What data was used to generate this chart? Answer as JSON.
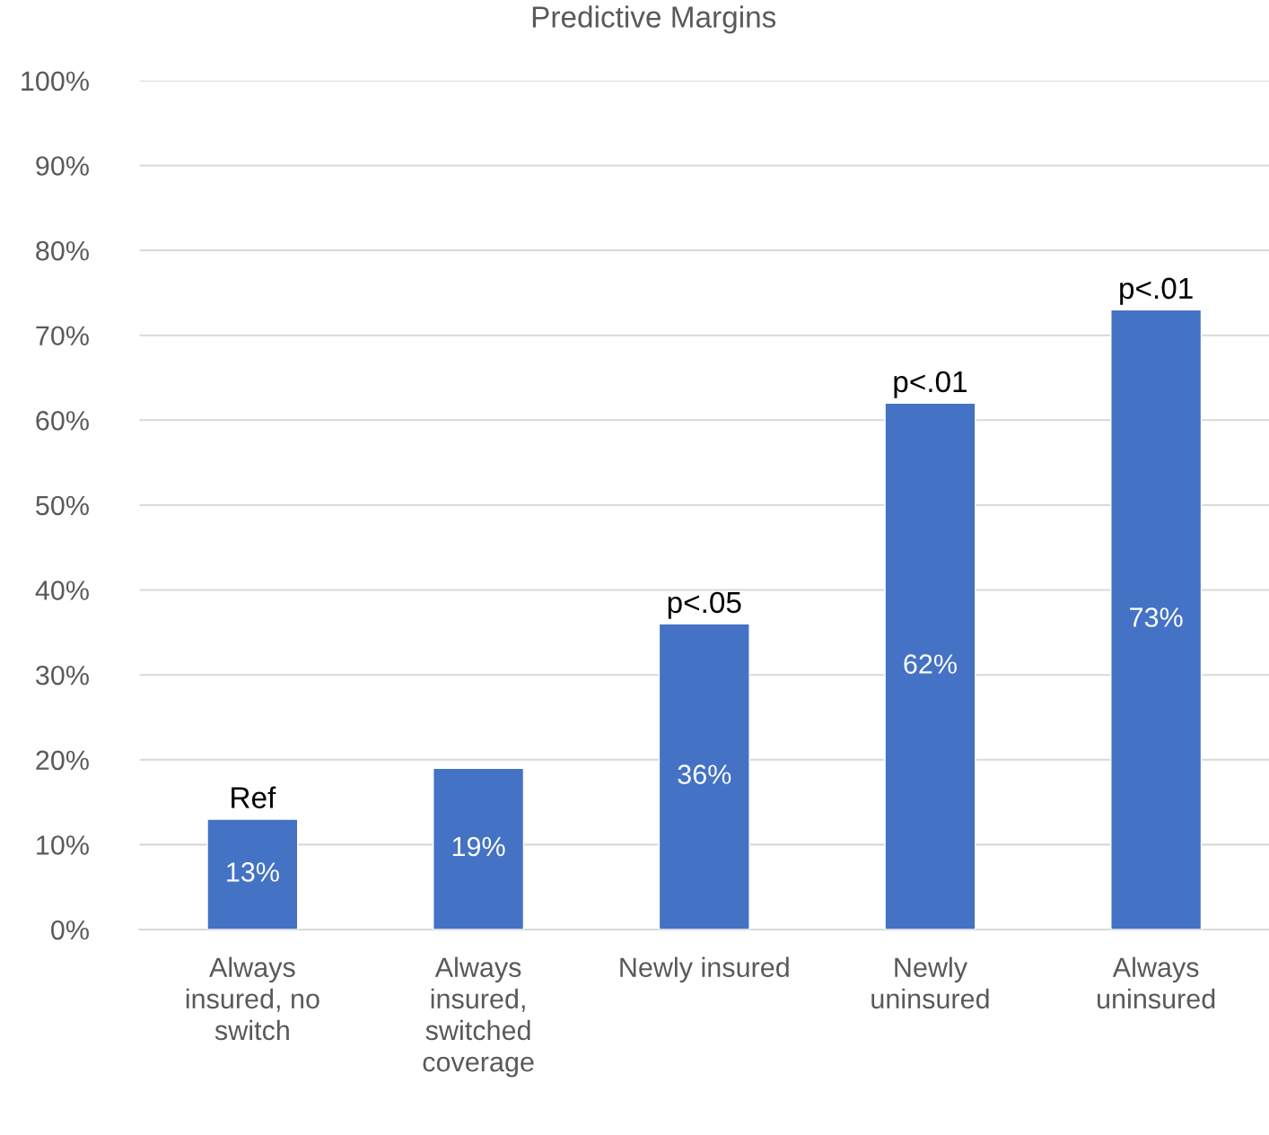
{
  "chart_data": {
    "type": "bar",
    "title": "Predictive Margins",
    "categories": [
      "Always insured, no switch",
      "Always insured, switched coverage",
      "Newly insured",
      "Newly uninsured",
      "Always uninsured"
    ],
    "values": [
      13,
      19,
      36,
      62,
      73
    ],
    "value_labels": [
      "13%",
      "19%",
      "36%",
      "62%",
      "73%"
    ],
    "color": "#4472c4",
    "ylim": [
      0,
      100
    ],
    "yticks": [
      {
        "value": 0,
        "label": "0%"
      },
      {
        "value": 10,
        "label": "10%"
      },
      {
        "value": 20,
        "label": "20%"
      },
      {
        "value": 30,
        "label": "30%"
      },
      {
        "value": 40,
        "label": "40%"
      },
      {
        "value": 50,
        "label": "50%"
      },
      {
        "value": 60,
        "label": "60%"
      },
      {
        "value": 70,
        "label": "70%"
      },
      {
        "value": 80,
        "label": "80%"
      },
      {
        "value": 90,
        "label": "90%"
      },
      {
        "value": 100,
        "label": "100%"
      }
    ],
    "grid": "y",
    "annotations": [
      {
        "text": "Ref",
        "x": "Always insured, no switch",
        "y": 13
      },
      {
        "text": "p<.05",
        "x": "Newly insured",
        "y": 36
      },
      {
        "text": "p<.01",
        "x": "Newly uninsured",
        "y": 62
      },
      {
        "text": "p<.01",
        "x": "Always uninsured",
        "y": 73
      }
    ]
  }
}
